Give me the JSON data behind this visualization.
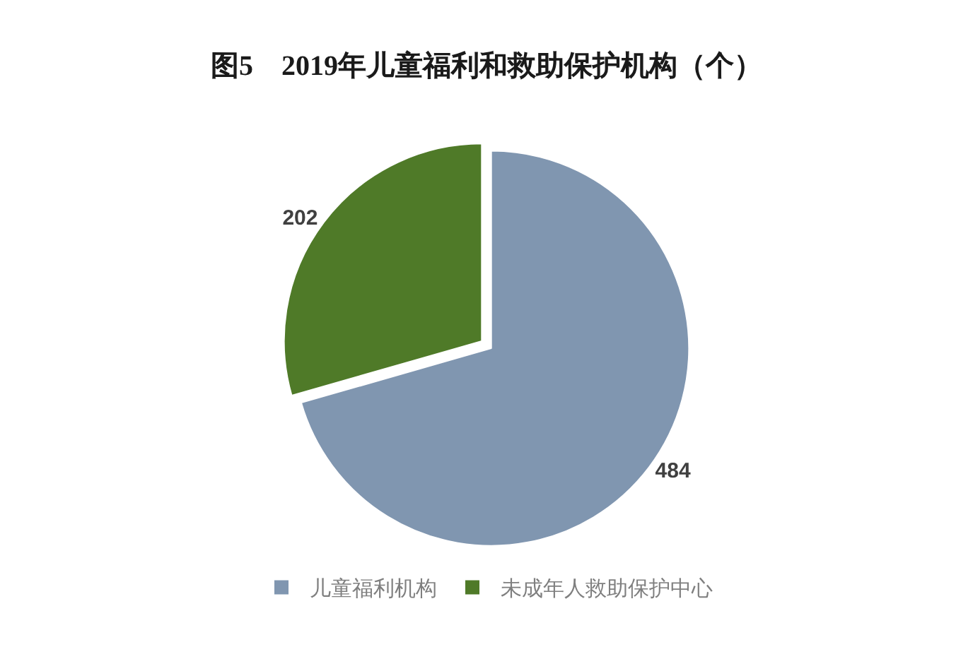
{
  "chart_data": {
    "type": "pie",
    "title": "图5　2019年儿童福利和救助保护机构（个）",
    "categories": [
      "儿童福利机构",
      "未成年人救助保护中心"
    ],
    "values": [
      484,
      202
    ],
    "colors": [
      "#8096b0",
      "#4f7a28"
    ],
    "data_labels": true,
    "legend": "bottom"
  }
}
